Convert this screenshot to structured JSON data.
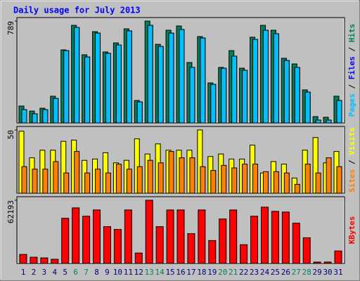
{
  "chart_data": [
    {
      "type": "bar",
      "title": "Daily usage for July 2013",
      "ylim": [
        0,
        789
      ],
      "yticks": [
        789
      ],
      "legend_separator": " / ",
      "series": [
        {
          "name": "Hits",
          "color": "#00805c",
          "values": [
            131,
            92,
            114,
            207,
            566,
            756,
            528,
            707,
            550,
            620,
            729,
            174,
            789,
            609,
            718,
            751,
            468,
            669,
            310,
            430,
            560,
            424,
            664,
            756,
            718,
            501,
            457,
            256,
            49,
            44,
            207
          ]
        },
        {
          "name": "Files",
          "color": "#0000ff",
          "values": [
            103,
            71,
            103,
            190,
            560,
            740,
            511,
            696,
            539,
            604,
            713,
            163,
            756,
            593,
            696,
            724,
            430,
            658,
            299,
            424,
            517,
            408,
            647,
            718,
            691,
            484,
            430,
            239,
            22,
            22,
            174
          ]
        },
        {
          "name": "Pages",
          "color": "#00c0ff",
          "values": [
            103,
            71,
            103,
            190,
            560,
            740,
            511,
            696,
            539,
            604,
            713,
            163,
            756,
            593,
            696,
            724,
            430,
            658,
            299,
            424,
            517,
            408,
            647,
            718,
            691,
            484,
            430,
            239,
            22,
            22,
            174
          ]
        }
      ]
    },
    {
      "type": "bar",
      "ylim": [
        0,
        50
      ],
      "yticks": [
        50
      ],
      "legend_separator": " / ",
      "series": [
        {
          "name": "Visits",
          "color": "#ffff00",
          "values": [
            49,
            28,
            34,
            34,
            41,
            42,
            26,
            27,
            32,
            24,
            26,
            43,
            31,
            39,
            34,
            34,
            34,
            50,
            29,
            31,
            27,
            27,
            38,
            16,
            25,
            23,
            12,
            34,
            44,
            24,
            33
          ]
        },
        {
          "name": "Sites",
          "color": "#ff8000",
          "values": [
            21,
            19,
            19,
            25,
            16,
            33,
            16,
            19,
            16,
            23,
            19,
            21,
            26,
            24,
            33,
            28,
            28,
            21,
            18,
            22,
            20,
            23,
            23,
            17,
            17,
            16,
            7,
            23,
            16,
            28,
            21
          ]
        }
      ]
    },
    {
      "type": "bar",
      "ylim": [
        0,
        62193
      ],
      "yticks": [
        62193
      ],
      "categories": [
        "1",
        "2",
        "3",
        "4",
        "5",
        "6",
        "7",
        "8",
        "9",
        "10",
        "11",
        "12",
        "13",
        "14",
        "15",
        "16",
        "17",
        "18",
        "19",
        "20",
        "21",
        "22",
        "23",
        "24",
        "25",
        "26",
        "27",
        "28",
        "29",
        "30",
        "31"
      ],
      "category_colors": [
        "#000080",
        "#000080",
        "#000080",
        "#000080",
        "#000080",
        "#00805c",
        "#00805c",
        "#000080",
        "#000080",
        "#000080",
        "#000080",
        "#000080",
        "#00805c",
        "#00805c",
        "#000080",
        "#000080",
        "#000080",
        "#000080",
        "#000080",
        "#00805c",
        "#00805c",
        "#000080",
        "#000080",
        "#000080",
        "#000080",
        "#000080",
        "#00805c",
        "#00805c",
        "#000080",
        "#000080",
        "#000080"
      ],
      "series": [
        {
          "name": "KBytes",
          "color": "#ff0000",
          "values": [
            8884,
            6151,
            5467,
            4100,
            44421,
            54672,
            46471,
            52622,
            36220,
            33487,
            52622,
            10251,
            62193,
            36220,
            52622,
            52622,
            29387,
            52622,
            22552,
            43738,
            52622,
            18452,
            46471,
            55357,
            51256,
            50572,
            39638,
            25286,
            1367,
            1367,
            12301
          ]
        }
      ]
    }
  ]
}
